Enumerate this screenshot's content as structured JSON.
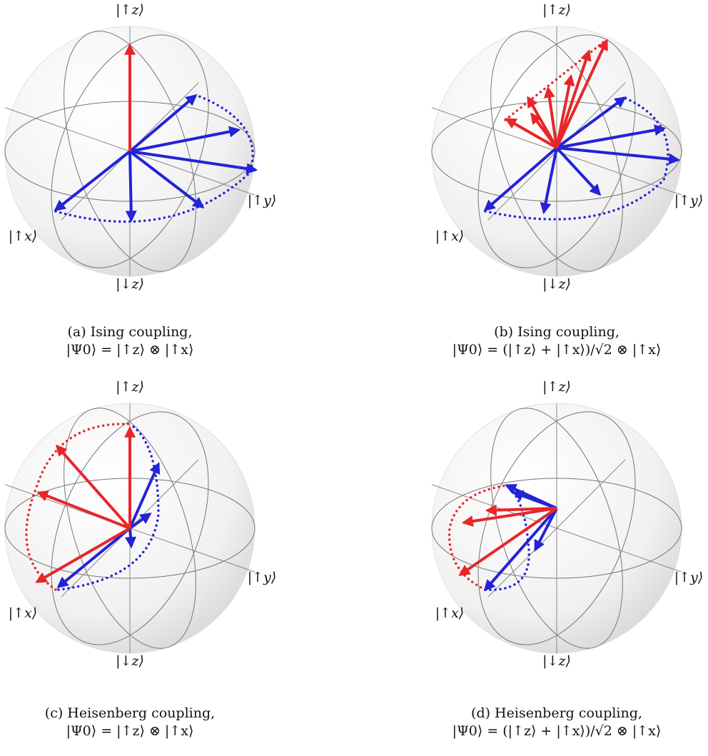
{
  "panels": [
    {
      "labels": {
        "up_z": "|↑z⟩",
        "down_z": "|↓z⟩",
        "up_x": "|↑x⟩",
        "up_y": "|↑y⟩"
      },
      "caption": [
        "(a) Ising coupling,",
        "|Ψ0⟩ = |↑z⟩ ⊗ |↑x⟩"
      ]
    },
    {
      "labels": {
        "up_z": "|↑z⟩",
        "down_z": "|↓z⟩",
        "up_x": "|↑x⟩",
        "up_y": "|↑y⟩"
      },
      "caption": [
        "(b) Ising coupling,",
        "|Ψ0⟩ = (|↑z⟩ + |↑x⟩)/√2 ⊗ |↑x⟩"
      ]
    },
    {
      "labels": {
        "up_z": "|↑z⟩",
        "down_z": "|↓z⟩",
        "up_x": "|↑x⟩",
        "up_y": "|↑y⟩"
      },
      "caption": [
        "(c) Heisenberg coupling,",
        "|Ψ0⟩ = |↑z⟩ ⊗ |↑x⟩"
      ]
    },
    {
      "labels": {
        "up_z": "|↑z⟩",
        "down_z": "|↓z⟩",
        "up_x": "|↑x⟩",
        "up_y": "|↑y⟩"
      },
      "caption": [
        "(d) Heisenberg coupling,",
        "|Ψ0⟩ = (|↑z⟩ + |↑x⟩)/√2 ⊗ |↑x⟩"
      ]
    }
  ]
}
